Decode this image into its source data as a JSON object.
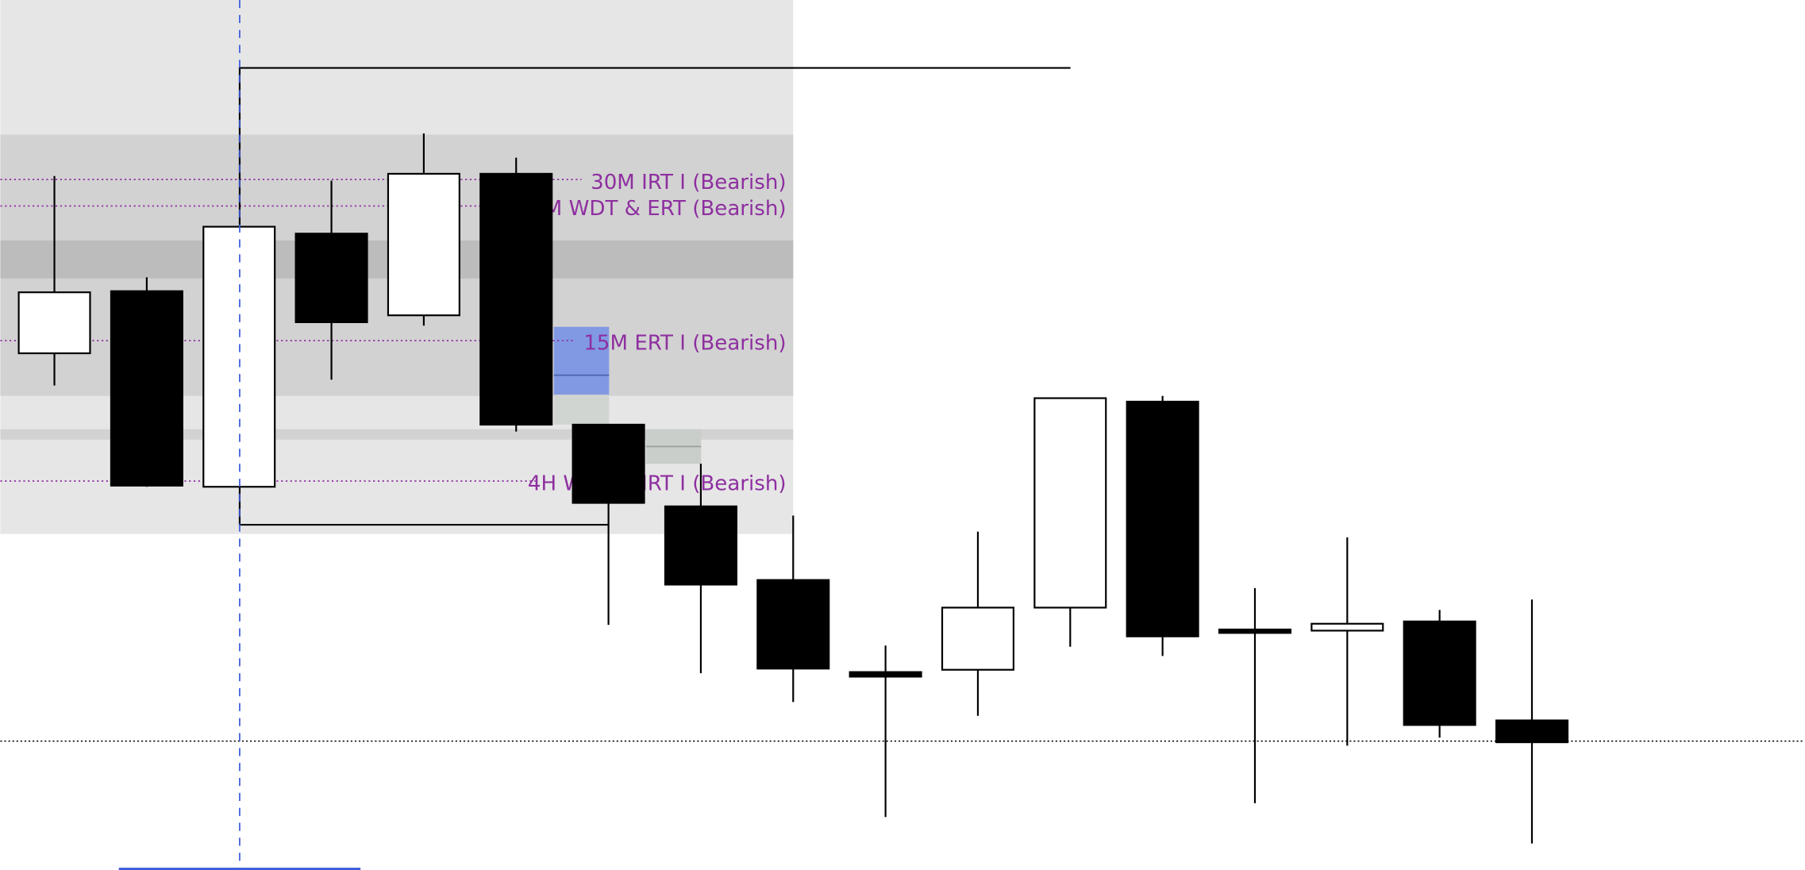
{
  "chart_data": {
    "type": "candlestick",
    "title": "",
    "xlabel": "",
    "ylabel": "",
    "grid": false,
    "price_units": "relative (no price axis shown)",
    "candles": [
      {
        "open": 449,
        "close": 502,
        "high": 603,
        "low": 421
      },
      {
        "open": 503,
        "close": 334,
        "high": 515,
        "low": 333
      },
      {
        "open": 333,
        "close": 559,
        "high": 697,
        "low": 300
      },
      {
        "open": 553,
        "close": 476,
        "high": 599,
        "low": 426
      },
      {
        "open": 482,
        "close": 605,
        "high": 640,
        "low": 473
      },
      {
        "open": 605,
        "close": 387,
        "high": 619,
        "low": 381
      },
      {
        "open": 387,
        "close": 319,
        "high": 387,
        "low": 213
      },
      {
        "open": 316,
        "close": 248,
        "high": 353,
        "low": 171
      },
      {
        "open": 252,
        "close": 175,
        "high": 308,
        "low": 146
      },
      {
        "open": 172,
        "close": 168,
        "high": 195,
        "low": 46
      },
      {
        "open": 174,
        "close": 228,
        "high": 294,
        "low": 134
      },
      {
        "open": 228,
        "close": 410,
        "high": 410,
        "low": 194
      },
      {
        "open": 407,
        "close": 203,
        "high": 412,
        "low": 186
      },
      {
        "open": 209,
        "close": 206,
        "high": 245,
        "low": 58
      },
      {
        "open": 208,
        "close": 214,
        "high": 289,
        "low": 108
      },
      {
        "open": 216,
        "close": 126,
        "high": 226,
        "low": 115
      },
      {
        "open": 130,
        "close": 111,
        "high": 235,
        "low": 23
      }
    ],
    "levels": [
      {
        "label": "30M IRT I (Bearish)",
        "price": 600
      },
      {
        "label": "15M WDT & ERT (Bearish)",
        "price": 577
      },
      {
        "label": "15M ERT I (Bearish)",
        "price": 460
      },
      {
        "label": "4H WDT & IRT I (Bearish)",
        "price": 338
      }
    ],
    "reference_line_price": 112,
    "colors": {
      "bullish": "#ffffff",
      "bearish": "#000000",
      "level_label": "#8e2fa0",
      "zone_light": "#e6e6e6",
      "zone_mid": "#d2d2d2",
      "zone_dark": "#bcbcbc",
      "fvg_blue": "#8199e3",
      "fvg_gray": "#d0d5d2",
      "cursor": "#3b5bdb"
    }
  }
}
